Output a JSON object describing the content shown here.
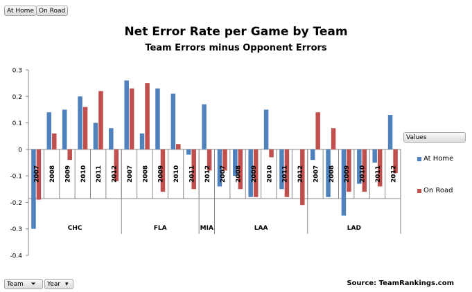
{
  "pivot_buttons": {
    "top": [
      "At Home",
      "On Road"
    ],
    "bottom": [
      "Team",
      "Year"
    ],
    "values": "Values"
  },
  "chart_data": {
    "type": "bar",
    "title": "Net Error Rate per Game by Team",
    "subtitle": "Team Errors minus Opponent Errors",
    "source": "Source: TeamRankings.com",
    "ylim": [
      -0.4,
      0.3
    ],
    "yticks": [
      "0.3",
      "0.2",
      "0.1",
      "0",
      "-0.1",
      "-0.2",
      "-0.3",
      "-0.4"
    ],
    "grid": false,
    "legend_position": "right",
    "colors": {
      "At Home": "#4f81bd",
      "On Road": "#c0504d"
    },
    "groups": [
      {
        "team": "CHC",
        "years": [
          "2007",
          "2008",
          "2009",
          "2010",
          "2011",
          "2012"
        ]
      },
      {
        "team": "FLA",
        "years": [
          "2007",
          "2008",
          "2009",
          "2010",
          "2011"
        ]
      },
      {
        "team": "MIA",
        "years": [
          "2012"
        ]
      },
      {
        "team": "LAA",
        "years": [
          "2007",
          "2008",
          "2009",
          "2010",
          "2011",
          "2012"
        ]
      },
      {
        "team": "LAD",
        "years": [
          "2007",
          "2008",
          "2009",
          "2010",
          "2011",
          "2012"
        ]
      }
    ],
    "series": [
      {
        "name": "At Home",
        "values": [
          -0.3,
          0.14,
          0.15,
          0.2,
          0.1,
          0.08,
          0.26,
          0.06,
          0.23,
          0.21,
          -0.02,
          0.17,
          -0.14,
          -0.1,
          -0.18,
          0.15,
          -0.15,
          0,
          -0.04,
          -0.18,
          -0.25,
          -0.13,
          -0.05,
          0.13
        ]
      },
      {
        "name": "On Road",
        "values": [
          -0.19,
          0.06,
          -0.04,
          0.16,
          0.22,
          -0.12,
          0.23,
          0.25,
          -0.16,
          0.02,
          -0.15,
          -0.08,
          -0.08,
          -0.15,
          -0.18,
          -0.03,
          -0.18,
          -0.21,
          0.14,
          0.08,
          -0.16,
          -0.16,
          -0.14,
          -0.09
        ]
      }
    ]
  }
}
